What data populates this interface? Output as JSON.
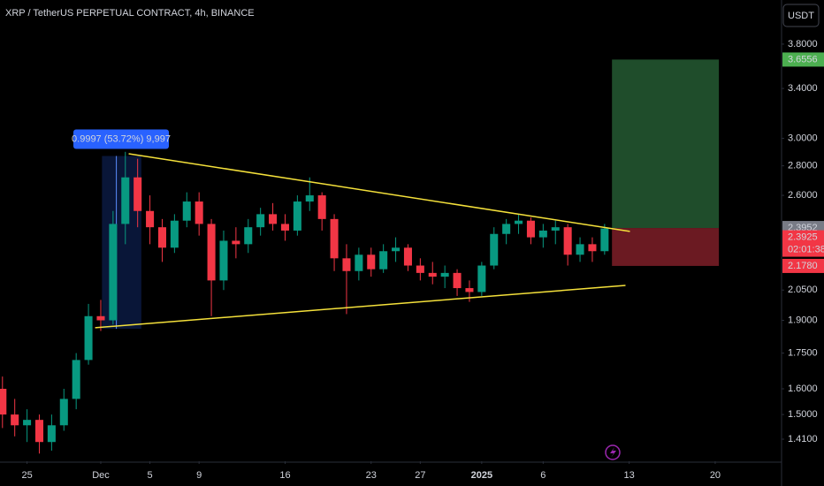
{
  "chart_data": {
    "type": "candlestick",
    "title": "XRP / TetherUS PERPETUAL CONTRACT, 4h, BINANCE",
    "currency": "USDT",
    "log_scale": true,
    "xlim": [
      -2.2,
      61.4
    ],
    "ylim": [
      1.334,
      4.245
    ],
    "xticks": [
      {
        "value": 0,
        "label": "25"
      },
      {
        "value": 6,
        "label": "Dec"
      },
      {
        "value": 10,
        "label": "5"
      },
      {
        "value": 14,
        "label": "9"
      },
      {
        "value": 21,
        "label": "16"
      },
      {
        "value": 28,
        "label": "23"
      },
      {
        "value": 32,
        "label": "27"
      },
      {
        "value": 37,
        "label": "2025"
      },
      {
        "value": 42,
        "label": "6"
      },
      {
        "value": 49,
        "label": "13"
      },
      {
        "value": 56,
        "label": "20"
      }
    ],
    "yticks": [
      {
        "value": 3.8,
        "label": "3.8000"
      },
      {
        "value": 3.4,
        "label": "3.4000"
      },
      {
        "value": 3,
        "label": "3.0000"
      },
      {
        "value": 2.8,
        "label": "2.8000"
      },
      {
        "value": 2.6,
        "label": "2.6000"
      },
      {
        "value": 2.05,
        "label": "2.0500"
      },
      {
        "value": 1.9,
        "label": "1.9000"
      },
      {
        "value": 1.75,
        "label": "1.7500"
      },
      {
        "value": 1.6,
        "label": "1.6000"
      },
      {
        "value": 1.5,
        "label": "1.5000"
      },
      {
        "value": 1.41,
        "label": "1.4100"
      }
    ],
    "up_color": "#089981",
    "down_color": "#f23645",
    "x": [
      -2,
      -1,
      0,
      1,
      2,
      3,
      4,
      5,
      6,
      7,
      8,
      9,
      10,
      11,
      12,
      13,
      14,
      15,
      16,
      17,
      18,
      19,
      20,
      21,
      22,
      23,
      24,
      25,
      26,
      27,
      28,
      29,
      30,
      31,
      32,
      33,
      34,
      35,
      36,
      37,
      38,
      39,
      40,
      41,
      42,
      43,
      44,
      45,
      46,
      47
    ],
    "open": [
      1.6,
      1.5,
      1.46,
      1.48,
      1.4,
      1.46,
      1.56,
      1.72,
      1.92,
      1.9,
      2.42,
      2.72,
      2.5,
      2.4,
      2.28,
      2.44,
      2.56,
      2.42,
      2.1,
      2.32,
      2.3,
      2.4,
      2.48,
      2.42,
      2.38,
      2.56,
      2.6,
      2.45,
      2.22,
      2.15,
      2.24,
      2.16,
      2.26,
      2.28,
      2.18,
      2.14,
      2.12,
      2.14,
      2.06,
      2.04,
      2.18,
      2.36,
      2.42,
      2.44,
      2.34,
      2.38,
      2.4,
      2.24,
      2.3,
      2.26
    ],
    "high": [
      1.65,
      1.56,
      1.52,
      1.5,
      1.5,
      1.6,
      1.75,
      1.98,
      2.0,
      2.5,
      2.9,
      2.85,
      2.6,
      2.45,
      2.48,
      2.62,
      2.62,
      2.45,
      2.38,
      2.4,
      2.45,
      2.52,
      2.55,
      2.48,
      2.6,
      2.72,
      2.62,
      2.48,
      2.3,
      2.28,
      2.28,
      2.3,
      2.34,
      2.3,
      2.22,
      2.2,
      2.18,
      2.16,
      2.1,
      2.2,
      2.4,
      2.45,
      2.48,
      2.46,
      2.42,
      2.44,
      2.42,
      2.34,
      2.34,
      2.42
    ],
    "low": [
      1.45,
      1.42,
      1.4,
      1.36,
      1.37,
      1.44,
      1.52,
      1.7,
      1.85,
      1.88,
      2.3,
      2.4,
      2.3,
      2.2,
      2.25,
      2.4,
      2.35,
      1.92,
      2.05,
      2.22,
      2.25,
      2.35,
      2.38,
      2.32,
      2.35,
      2.5,
      2.38,
      2.15,
      1.93,
      2.1,
      2.12,
      2.14,
      2.2,
      2.15,
      2.1,
      2.08,
      2.06,
      2.02,
      1.99,
      2.02,
      2.16,
      2.3,
      2.36,
      2.3,
      2.28,
      2.3,
      2.18,
      2.2,
      2.2,
      2.24
    ],
    "close": [
      1.5,
      1.46,
      1.48,
      1.4,
      1.46,
      1.56,
      1.72,
      1.92,
      1.9,
      2.42,
      2.72,
      2.5,
      2.4,
      2.28,
      2.44,
      2.56,
      2.42,
      2.1,
      2.32,
      2.3,
      2.4,
      2.48,
      2.42,
      2.38,
      2.56,
      2.6,
      2.45,
      2.22,
      2.15,
      2.24,
      2.16,
      2.26,
      2.28,
      2.18,
      2.14,
      2.12,
      2.14,
      2.06,
      2.04,
      2.18,
      2.36,
      2.42,
      2.44,
      2.34,
      2.38,
      2.4,
      2.24,
      2.3,
      2.26,
      2.3925
    ],
    "trendlines": [
      {
        "x": [
          8.27,
          49.06
        ],
        "y": [
          2.886,
          2.375
        ],
        "color": "#f5e13b"
      },
      {
        "x": [
          5.54,
          48.7
        ],
        "y": [
          1.865,
          2.074
        ],
        "color": "#f5e13b"
      }
    ],
    "measure": {
      "x": [
        6.1,
        9.3
      ],
      "y": [
        1.86,
        2.87
      ],
      "label": "0.9997 (53.72%) 9,997"
    },
    "position": {
      "x": [
        47.6,
        56.3
      ],
      "target": {
        "value": 3.6556,
        "label": "3.6556"
      },
      "entry": {
        "value": 2.3952,
        "label": "2.3952"
      },
      "stop": {
        "value": 2.178,
        "label": "2.1780"
      }
    },
    "last_price": {
      "value": 2.3925,
      "label": "2.3925",
      "countdown": "02:01:38"
    }
  }
}
